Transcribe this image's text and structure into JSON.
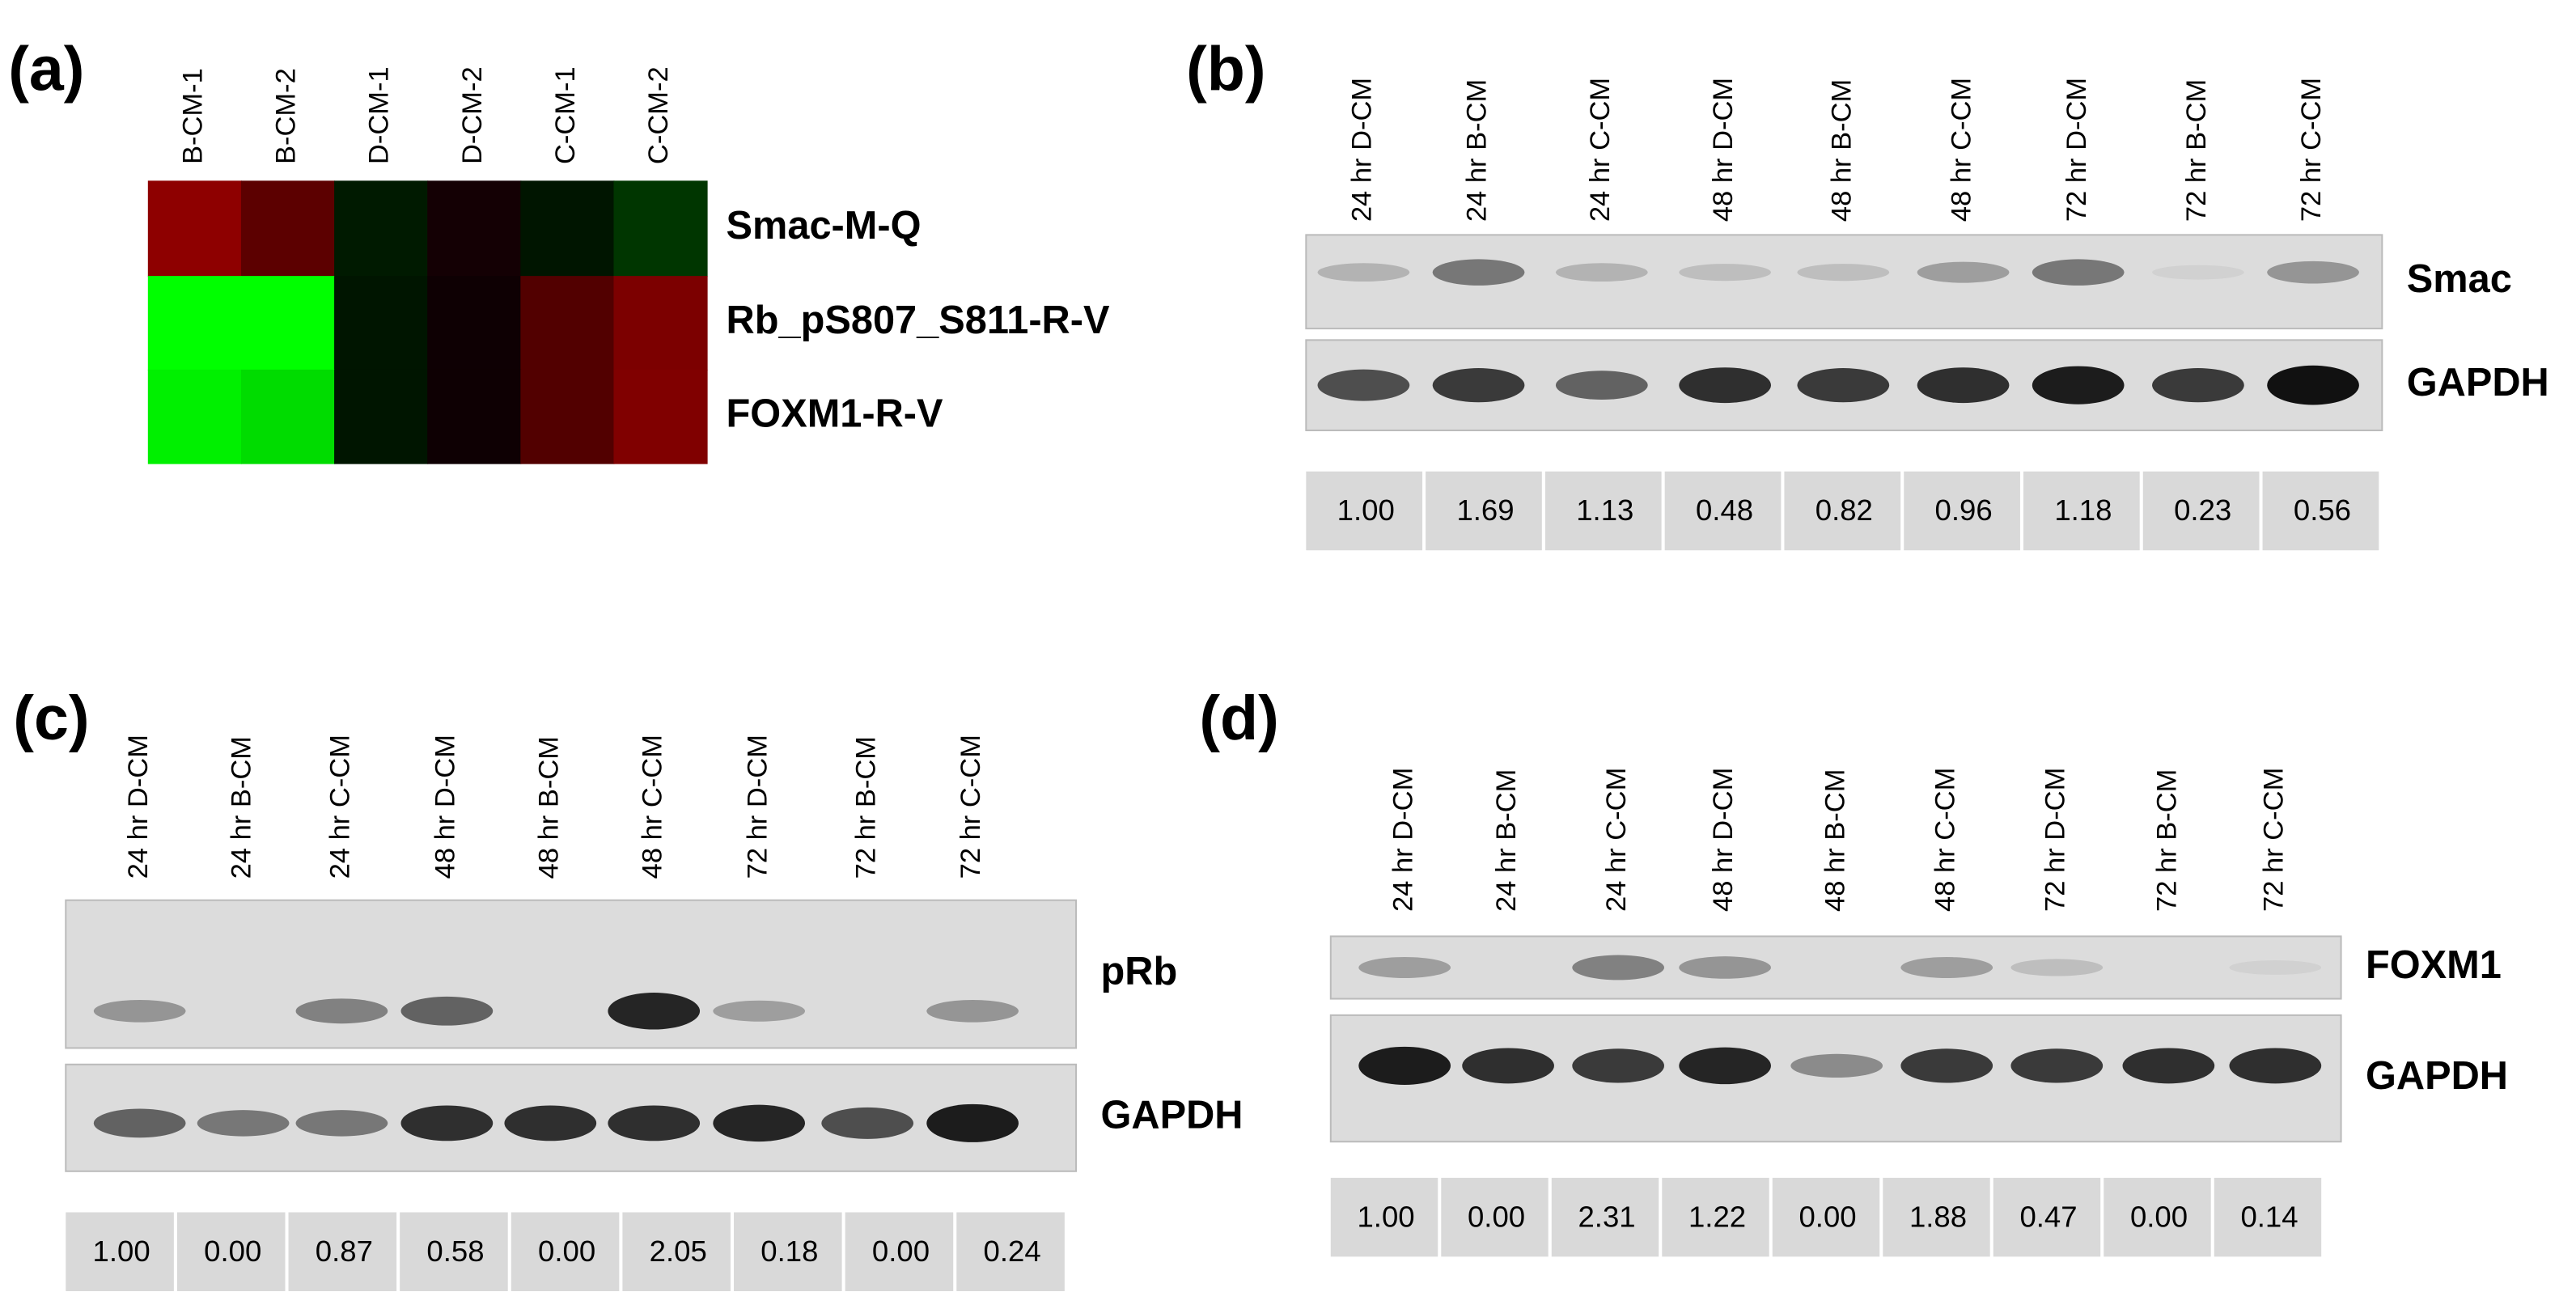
{
  "panel_a": {
    "label": "(a)",
    "columns": [
      "B-CM-1",
      "B-CM-2",
      "D-CM-1",
      "D-CM-2",
      "C-CM-1",
      "C-CM-2"
    ],
    "rows": [
      "Smac-M-Q",
      "Rb_pS807_S811-R-V",
      "FOXM1-R-V"
    ],
    "colors": [
      [
        "#8e0000",
        "#5c0000",
        "#001a00",
        "#140004",
        "#001500",
        "#003600"
      ],
      [
        "#00ff00",
        "#00ff00",
        "#001500",
        "#0e0003",
        "#520000",
        "#7c0000"
      ],
      [
        "#00f000",
        "#00dc00",
        "#001500",
        "#0e0003",
        "#520000",
        "#800000"
      ]
    ]
  },
  "panel_b": {
    "label": "(b)",
    "columns": [
      "24 hr D-CM",
      "24 hr B-CM",
      "24 hr C-CM",
      "48 hr D-CM",
      "48 hr B-CM",
      "48 hr C-CM",
      "72 hr D-CM",
      "72 hr B-CM",
      "72 hr C-CM"
    ],
    "blots": [
      "Smac",
      "GAPDH"
    ],
    "quantification": [
      "1.00",
      "1.69",
      "1.13",
      "0.48",
      "0.82",
      "0.96",
      "1.18",
      "0.23",
      "0.56"
    ]
  },
  "panel_c": {
    "label": "(c)",
    "columns": [
      "24 hr D-CM",
      "24 hr B-CM",
      "24 hr C-CM",
      "48 hr D-CM",
      "48 hr B-CM",
      "48 hr C-CM",
      "72 hr D-CM",
      "72 hr B-CM",
      "72 hr C-CM"
    ],
    "blots": [
      "pRb",
      "GAPDH"
    ],
    "quantification": [
      "1.00",
      "0.00",
      "0.87",
      "0.58",
      "0.00",
      "2.05",
      "0.18",
      "0.00",
      "0.24"
    ]
  },
  "panel_d": {
    "label": "(d)",
    "columns": [
      "24 hr D-CM",
      "24 hr B-CM",
      "24 hr C-CM",
      "48 hr D-CM",
      "48 hr B-CM",
      "48 hr C-CM",
      "72 hr D-CM",
      "72 hr B-CM",
      "72 hr C-CM"
    ],
    "blots": [
      "FOXM1",
      "GAPDH"
    ],
    "quantification": [
      "1.00",
      "0.00",
      "2.31",
      "1.22",
      "0.00",
      "1.88",
      "0.47",
      "0.00",
      "0.14"
    ]
  }
}
